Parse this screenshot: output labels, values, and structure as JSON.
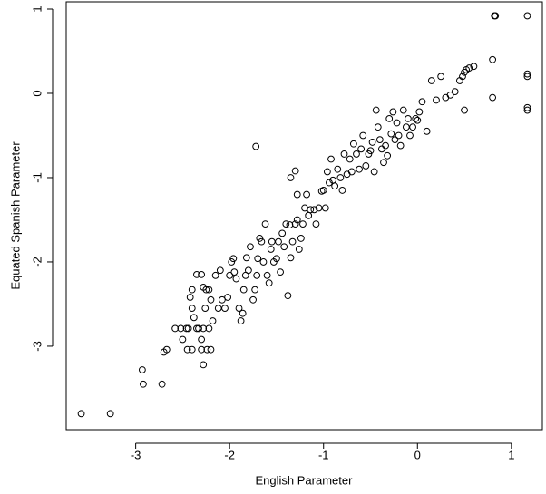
{
  "chart_data": {
    "type": "scatter",
    "x_label": "English Parameter",
    "y_label": "Equated Spanish Parameter",
    "xlim": [
      -3.74,
      1.33
    ],
    "ylim": [
      -3.99,
      1.086
    ],
    "xticks": [
      -3,
      -2,
      -1,
      0,
      1
    ],
    "yticks": [
      -3,
      -2,
      -1,
      0,
      1
    ],
    "color": "#000000",
    "x": [
      -3.58,
      -3.27,
      -2.93,
      -2.92,
      -2.72,
      -2.7,
      -2.67,
      -2.58,
      -2.52,
      -2.5,
      -2.45,
      -2.4,
      -2.46,
      -2.44,
      -2.4,
      -2.38,
      -2.35,
      -2.33,
      -2.3,
      -2.28,
      -2.26,
      -2.22,
      -2.2,
      -2.24,
      -2.28,
      -2.3,
      -2.42,
      -2.4,
      -2.35,
      -2.3,
      -2.28,
      -2.25,
      -2.22,
      -2.2,
      -2.18,
      -2.15,
      -2.12,
      -2.1,
      -2.08,
      -2.05,
      -2.02,
      -2.0,
      -1.98,
      -1.96,
      -1.95,
      -1.93,
      -1.9,
      -1.88,
      -1.86,
      -1.85,
      -1.83,
      -1.82,
      -1.8,
      -1.78,
      -1.75,
      -1.73,
      -1.71,
      -1.7,
      -1.68,
      -1.66,
      -1.64,
      -1.62,
      -1.6,
      -1.58,
      -1.56,
      -1.55,
      -1.53,
      -1.5,
      -1.48,
      -1.46,
      -1.44,
      -1.42,
      -1.4,
      -1.38,
      -1.36,
      -1.35,
      -1.33,
      -1.3,
      -1.28,
      -1.26,
      -1.24,
      -1.22,
      -1.2,
      -1.18,
      -1.16,
      -1.14,
      -1.1,
      -1.08,
      -1.05,
      -1.02,
      -1.0,
      -0.98,
      -0.96,
      -0.94,
      -0.92,
      -0.9,
      -0.88,
      -0.85,
      -0.82,
      -0.8,
      -0.78,
      -0.75,
      -0.72,
      -0.7,
      -0.68,
      -0.65,
      -0.62,
      -0.6,
      -0.58,
      -0.55,
      -0.52,
      -0.5,
      -0.48,
      -0.46,
      -0.44,
      -0.42,
      -0.4,
      -0.38,
      -0.36,
      -0.34,
      -0.32,
      -0.3,
      -0.28,
      -0.26,
      -0.24,
      -0.22,
      -0.2,
      -0.18,
      -0.15,
      -0.12,
      -0.1,
      -0.08,
      -0.05,
      -0.02,
      0.0,
      0.02,
      0.05,
      0.1,
      0.15,
      0.2,
      0.25,
      0.3,
      0.35,
      0.4,
      0.45,
      0.48,
      0.5,
      0.52,
      0.55,
      0.6,
      0.5,
      0.8,
      0.8,
      0.82,
      0.83,
      1.17,
      1.17,
      1.17,
      1.17,
      1.17,
      -1.72,
      -1.35,
      -1.3,
      -1.28
    ],
    "values": [
      -3.8,
      -3.8,
      -3.28,
      -3.45,
      -3.45,
      -3.07,
      -3.04,
      -2.79,
      -2.79,
      -2.92,
      -3.04,
      -3.04,
      -2.79,
      -2.79,
      -2.55,
      -2.66,
      -2.79,
      -2.79,
      -2.92,
      -2.79,
      -2.55,
      -2.79,
      -3.04,
      -3.04,
      -3.22,
      -3.04,
      -2.42,
      -2.33,
      -2.15,
      -2.15,
      -2.3,
      -2.33,
      -2.33,
      -2.45,
      -2.7,
      -2.16,
      -2.55,
      -2.1,
      -2.45,
      -2.55,
      -2.42,
      -2.16,
      -2.0,
      -1.96,
      -2.12,
      -2.2,
      -2.55,
      -2.7,
      -2.61,
      -2.33,
      -2.16,
      -1.95,
      -2.1,
      -1.82,
      -2.45,
      -2.33,
      -2.16,
      -1.96,
      -1.72,
      -1.76,
      -2.0,
      -1.55,
      -2.16,
      -2.25,
      -1.85,
      -1.76,
      -2.0,
      -1.96,
      -1.76,
      -2.12,
      -1.66,
      -1.82,
      -1.55,
      -2.4,
      -1.56,
      -1.95,
      -1.76,
      -1.55,
      -1.5,
      -1.85,
      -1.72,
      -1.55,
      -1.36,
      -1.2,
      -1.45,
      -1.38,
      -1.38,
      -1.55,
      -1.36,
      -1.16,
      -1.15,
      -1.36,
      -0.93,
      -1.06,
      -0.78,
      -1.03,
      -1.1,
      -0.9,
      -1.0,
      -1.15,
      -0.72,
      -0.96,
      -0.78,
      -0.93,
      -0.6,
      -0.72,
      -0.9,
      -0.66,
      -0.5,
      -0.86,
      -0.72,
      -0.68,
      -0.58,
      -0.93,
      -0.2,
      -0.4,
      -0.55,
      -0.66,
      -0.82,
      -0.62,
      -0.74,
      -0.3,
      -0.48,
      -0.22,
      -0.55,
      -0.35,
      -0.5,
      -0.62,
      -0.2,
      -0.4,
      -0.3,
      -0.5,
      -0.4,
      -0.3,
      -0.32,
      -0.22,
      -0.1,
      -0.45,
      0.15,
      -0.08,
      0.2,
      -0.05,
      -0.02,
      0.02,
      0.15,
      0.2,
      0.25,
      0.28,
      0.3,
      0.32,
      -0.2,
      0.4,
      -0.05,
      0.92,
      0.92,
      0.92,
      0.23,
      0.2,
      -0.17,
      -0.2,
      -0.63,
      -1.0,
      -0.92,
      -1.2
    ]
  }
}
